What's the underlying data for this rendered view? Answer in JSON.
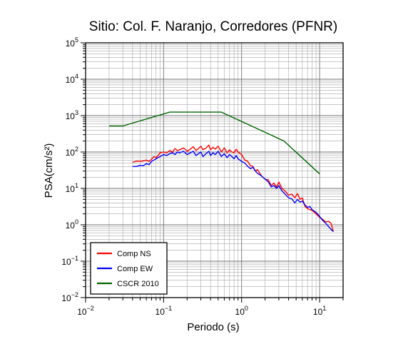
{
  "chart_data": {
    "type": "line",
    "title": "Sitio: Col. F. Naranjo, Corredores (PFNR)",
    "xlabel": "Periodo (s)",
    "ylabel": "PSA(cm/s²)",
    "x_scale": "log",
    "y_scale": "log",
    "xlim": [
      0.01,
      20
    ],
    "ylim": [
      0.01,
      100000
    ],
    "grid": true,
    "legend_position": "bottom-left",
    "x_ticks": [
      {
        "value": 0.01,
        "base": "10",
        "exp": "−2"
      },
      {
        "value": 0.1,
        "base": "10",
        "exp": "−1"
      },
      {
        "value": 1,
        "base": "10",
        "exp": "0"
      },
      {
        "value": 10,
        "base": "10",
        "exp": "1"
      }
    ],
    "y_ticks": [
      {
        "value": 0.01,
        "base": "10",
        "exp": "−2"
      },
      {
        "value": 0.1,
        "base": "10",
        "exp": "−1"
      },
      {
        "value": 1,
        "base": "10",
        "exp": "0"
      },
      {
        "value": 10,
        "base": "10",
        "exp": "1"
      },
      {
        "value": 100,
        "base": "10",
        "exp": "2"
      },
      {
        "value": 1000,
        "base": "10",
        "exp": "3"
      },
      {
        "value": 10000,
        "base": "10",
        "exp": "4"
      },
      {
        "value": 100000,
        "base": "10",
        "exp": "5"
      }
    ],
    "series": [
      {
        "name": "Comp NS",
        "color": "#ff0000",
        "x": [
          0.04,
          0.045,
          0.05,
          0.055,
          0.06,
          0.065,
          0.07,
          0.075,
          0.08,
          0.085,
          0.09,
          0.1,
          0.11,
          0.12,
          0.13,
          0.14,
          0.15,
          0.16,
          0.18,
          0.2,
          0.22,
          0.24,
          0.26,
          0.28,
          0.3,
          0.32,
          0.35,
          0.38,
          0.4,
          0.43,
          0.46,
          0.5,
          0.55,
          0.6,
          0.65,
          0.7,
          0.75,
          0.8,
          0.85,
          0.9,
          1.0,
          1.1,
          1.2,
          1.3,
          1.4,
          1.5,
          1.6,
          1.8,
          2.0,
          2.2,
          2.4,
          2.6,
          2.8,
          3.0,
          3.3,
          3.6,
          4.0,
          4.4,
          4.8,
          5.2,
          5.6,
          6.0,
          6.5,
          7.0,
          7.5,
          8.0,
          9.0,
          10.0,
          11.0,
          12.0,
          13.0,
          14.0,
          15.0
        ],
        "y": [
          52,
          56,
          55,
          57,
          60,
          55,
          63,
          75,
          70,
          80,
          95,
          100,
          95,
          110,
          100,
          125,
          110,
          115,
          130,
          105,
          120,
          140,
          110,
          125,
          145,
          115,
          130,
          155,
          115,
          135,
          120,
          145,
          100,
          130,
          95,
          115,
          100,
          95,
          120,
          100,
          85,
          60,
          55,
          42,
          40,
          30,
          33,
          22,
          18,
          17,
          12,
          14,
          11,
          15,
          10,
          8.5,
          6.5,
          7,
          5.5,
          7.2,
          5,
          5.5,
          3.2,
          2.8,
          2.6,
          2.5,
          2.0,
          1.6,
          1.4,
          1.2,
          1.25,
          1.1,
          0.65
        ]
      },
      {
        "name": "Comp EW",
        "color": "#0000ff",
        "x": [
          0.04,
          0.045,
          0.05,
          0.055,
          0.06,
          0.065,
          0.07,
          0.075,
          0.08,
          0.085,
          0.09,
          0.1,
          0.11,
          0.12,
          0.13,
          0.14,
          0.15,
          0.16,
          0.18,
          0.2,
          0.22,
          0.24,
          0.26,
          0.28,
          0.3,
          0.32,
          0.35,
          0.38,
          0.4,
          0.43,
          0.46,
          0.5,
          0.55,
          0.6,
          0.65,
          0.7,
          0.75,
          0.8,
          0.85,
          0.9,
          1.0,
          1.1,
          1.2,
          1.3,
          1.4,
          1.5,
          1.6,
          1.8,
          2.0,
          2.2,
          2.4,
          2.6,
          2.8,
          3.0,
          3.3,
          3.6,
          4.0,
          4.4,
          4.8,
          5.2,
          5.6,
          6.0,
          6.5,
          7.0,
          7.5,
          8.0,
          9.0,
          10.0,
          11.0,
          12.0,
          13.0,
          14.0,
          15.0
        ],
        "y": [
          40,
          40,
          43,
          42,
          48,
          45,
          55,
          60,
          65,
          70,
          75,
          85,
          80,
          90,
          95,
          85,
          100,
          95,
          105,
          85,
          95,
          105,
          80,
          90,
          100,
          75,
          90,
          105,
          80,
          95,
          85,
          105,
          75,
          90,
          70,
          85,
          75,
          65,
          80,
          65,
          55,
          50,
          40,
          35,
          38,
          30,
          26,
          22,
          18,
          15,
          11,
          12,
          10,
          12,
          8.5,
          7,
          5.5,
          5.2,
          4,
          5,
          4.2,
          4.5,
          3.5,
          3,
          3.2,
          2.6,
          2.2,
          1.7,
          1.3,
          1.1,
          0.9,
          0.75,
          0.65
        ]
      },
      {
        "name": "CSCR 2010",
        "color": "#006400",
        "x": [
          0.02,
          0.03,
          0.12,
          0.55,
          3.5,
          10
        ],
        "y": [
          520,
          520,
          1250,
          1250,
          200,
          25
        ]
      }
    ]
  }
}
